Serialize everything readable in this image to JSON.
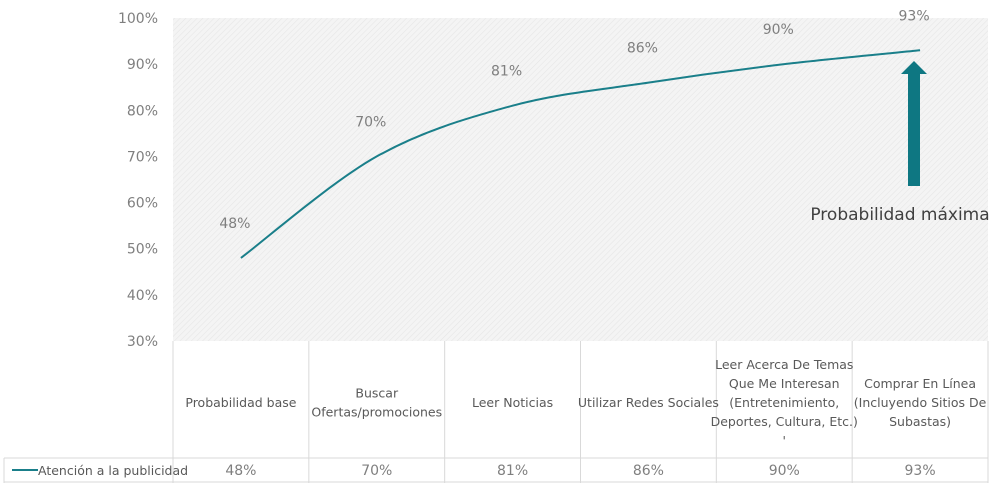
{
  "chart_data": {
    "type": "line",
    "title": "",
    "xlabel": "",
    "ylabel": "",
    "ylim": [
      30,
      100
    ],
    "yticks": [
      "30%",
      "40%",
      "50%",
      "60%",
      "70%",
      "80%",
      "90%",
      "100%"
    ],
    "categories": [
      "Probabilidad base",
      "Buscar Ofertas/promociones",
      "Leer Noticias",
      "Utilizar Redes Sociales",
      "Leer Acerca De Temas Que Me Interesan (Entretenimiento, Deportes, Cultura, Etc.) '",
      "Comprar En Línea (Incluyendo Sitios De Subastas)"
    ],
    "category_lines": [
      [
        "Probabilidad base"
      ],
      [
        "Buscar",
        "Ofertas/promociones"
      ],
      [
        "Leer Noticias"
      ],
      [
        "Utilizar Redes Sociales"
      ],
      [
        "Leer Acerca De Temas",
        "Que Me Interesan",
        "(Entretenimiento,",
        "Deportes, Cultura, Etc.)",
        "'"
      ],
      [
        "Comprar En Línea",
        "(Incluyendo Sitios De",
        "Subastas)"
      ]
    ],
    "series": [
      {
        "name": "Atención a la publicidad",
        "values": [
          48,
          70,
          81,
          86,
          90,
          93
        ],
        "labels": [
          "48%",
          "70%",
          "81%",
          "86%",
          "90%",
          "93%"
        ]
      }
    ],
    "annotation": "Probabilidad máxima",
    "grid": false,
    "legend": "data-table-left"
  },
  "colors": {
    "line": "#1a7f8a",
    "arrow": "#0e7782",
    "plot_bg": "#f2f2f2",
    "text": "#7f7f7f",
    "annotation_text": "#404040",
    "table_lines": "#d9d9d9"
  }
}
